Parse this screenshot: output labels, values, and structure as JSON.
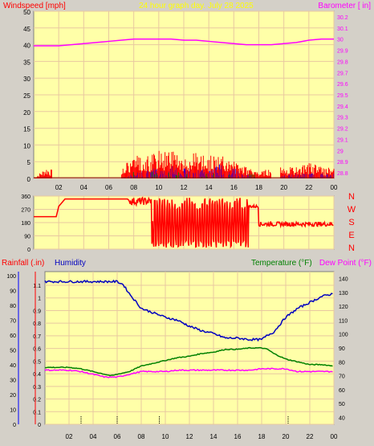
{
  "colors": {
    "frame": "#d4d0c8",
    "plot_bg": "#ffffa8",
    "grid": "#e8c8a0",
    "wind": "#ff0000",
    "gust": "#0000ff",
    "wind_green": "#008000",
    "baro": "#ff00ff",
    "rain": "#ff0000",
    "humidity": "#0000c0",
    "temperature": "#008000",
    "dewpoint": "#ff00ff",
    "title": "#ffff00",
    "axis_text": "#000000"
  },
  "chart_data": [
    {
      "type": "line",
      "id": "wind_baro",
      "title": "24 hour graph day.  July 28 2025",
      "left_label": "Windspeed [mph]",
      "right_label": "Barometer [ in]",
      "x_ticks": [
        "02",
        "04",
        "06",
        "08",
        "10",
        "12",
        "14",
        "16",
        "18",
        "20",
        "22",
        "00"
      ],
      "y_left_ticks": [
        "0",
        "5",
        "10",
        "15",
        "20",
        "25",
        "30",
        "35",
        "40",
        "45",
        "50"
      ],
      "y_left_range": [
        0,
        50
      ],
      "y_right_ticks": [
        "28.8",
        "28.9",
        "29",
        "29.1",
        "29.2",
        "29.3",
        "29.4",
        "29.5",
        "29.6",
        "29.7",
        "29.8",
        "29.9",
        "30",
        "30.1",
        "30.2"
      ],
      "y_right_range": [
        28.75,
        30.25
      ],
      "grid": true,
      "series": [
        {
          "name": "Barometer",
          "axis": "right",
          "x": [
            0,
            1,
            2,
            3,
            4,
            5,
            6,
            7,
            8,
            9,
            10,
            11,
            12,
            13,
            14,
            15,
            16,
            17,
            18,
            19,
            20,
            21,
            22,
            23,
            24
          ],
          "y": [
            29.94,
            29.94,
            29.94,
            29.95,
            29.96,
            29.97,
            29.98,
            29.99,
            30.0,
            30.0,
            30.0,
            30.0,
            29.99,
            29.99,
            29.98,
            29.97,
            29.96,
            29.95,
            29.95,
            29.95,
            29.96,
            29.97,
            29.99,
            30.0,
            30.0
          ]
        },
        {
          "name": "Wind speed",
          "axis": "left",
          "x": [
            0,
            0.5,
            1,
            2,
            3,
            4,
            5,
            6,
            7,
            8,
            9,
            10,
            11,
            12,
            13,
            14,
            15,
            16,
            17,
            18,
            19,
            20,
            21,
            22,
            23,
            24
          ],
          "y": [
            0,
            1,
            2,
            1,
            0,
            0.5,
            0,
            0,
            2,
            4,
            4,
            5,
            5,
            4,
            5,
            4,
            4,
            3,
            2,
            1,
            2,
            2,
            2,
            3,
            2,
            2
          ]
        },
        {
          "name": "Gust",
          "axis": "left",
          "x": [
            7,
            8,
            9,
            10,
            11,
            12,
            13,
            14,
            15,
            16,
            17,
            18,
            19,
            20,
            21,
            22,
            23,
            24
          ],
          "y": [
            0,
            1,
            2,
            2,
            3,
            2,
            2,
            2,
            3,
            2,
            1,
            0,
            0,
            1,
            1,
            1,
            1,
            1
          ]
        }
      ]
    },
    {
      "type": "line",
      "id": "direction",
      "x_ticks": [
        "02",
        "04",
        "06",
        "08",
        "10",
        "12",
        "14",
        "16",
        "18",
        "20",
        "22",
        "00"
      ],
      "y_ticks": [
        "0",
        "90",
        "180",
        "270",
        "360"
      ],
      "y_range": [
        0,
        360
      ],
      "compass_labels": [
        "N",
        "W",
        "S",
        "E",
        "N"
      ],
      "series": [
        {
          "name": "Wind direction",
          "x": [
            0,
            1.8,
            2,
            2.5,
            3,
            4,
            5,
            6,
            7,
            7.5,
            8,
            9,
            10,
            11,
            12,
            13,
            14,
            15,
            16,
            17,
            17.5,
            18,
            19,
            20,
            21,
            22,
            23,
            24
          ],
          "y": [
            220,
            220,
            290,
            340,
            340,
            340,
            340,
            340,
            340,
            340,
            300,
            180,
            200,
            160,
            240,
            180,
            220,
            180,
            260,
            290,
            280,
            170,
            190,
            185,
            185,
            180,
            175,
            175
          ]
        }
      ]
    },
    {
      "type": "line",
      "id": "rain_hum_temp",
      "left_label_1": "Rainfall (.in)",
      "left_label_2": "Humidity",
      "right_label_1": "Temperature (°F)",
      "right_label_2": "Dew Point (°F)",
      "x_ticks": [
        "02",
        "04",
        "06",
        "08",
        "10",
        "12",
        "14",
        "16",
        "18",
        "20",
        "22",
        "00"
      ],
      "y_humidity_ticks": [
        "0",
        "10",
        "20",
        "30",
        "40",
        "50",
        "60",
        "70",
        "80",
        "90",
        "100"
      ],
      "y_humidity_range": [
        0,
        100
      ],
      "y_rain_ticks": [
        "0",
        "0.1",
        "0.2",
        "0.3",
        "0.4",
        "0.5",
        "0.6",
        "0.7",
        "0.8",
        "0.9",
        "1",
        "1.1"
      ],
      "y_rain_range": [
        0,
        1.15
      ],
      "y_temp_ticks": [
        "40",
        "50",
        "60",
        "70",
        "80",
        "90",
        "100",
        "110",
        "120",
        "130",
        "140"
      ],
      "y_temp_range": [
        35,
        145
      ],
      "grid": true,
      "series": [
        {
          "name": "Humidity",
          "axis": "humidity",
          "x": [
            0,
            2,
            4,
            6,
            6.5,
            7,
            8,
            9,
            10,
            11,
            12,
            13,
            14,
            15,
            16,
            17,
            18,
            18.5,
            19,
            20,
            21,
            22,
            23,
            24
          ],
          "y": [
            96,
            96,
            96,
            96,
            94,
            88,
            78,
            75,
            72,
            70,
            66,
            63,
            61,
            58,
            58,
            57,
            57,
            60,
            62,
            72,
            78,
            82,
            86,
            88
          ]
        },
        {
          "name": "Temperature",
          "axis": "temp",
          "x": [
            0,
            1,
            2,
            3,
            4,
            5,
            5.5,
            6,
            7,
            8,
            9,
            10,
            11,
            12,
            13,
            14,
            15,
            16,
            17,
            18,
            18.5,
            19,
            20,
            21,
            22,
            23,
            24
          ],
          "y": [
            76,
            76,
            76,
            75,
            73,
            71,
            70,
            71,
            73,
            77,
            79,
            81,
            83,
            84,
            86,
            87,
            89,
            89,
            90,
            90,
            89,
            86,
            82,
            80,
            78,
            78,
            77
          ]
        },
        {
          "name": "Dew Point",
          "axis": "temp",
          "x": [
            0,
            1,
            2,
            3,
            4,
            5,
            5.5,
            6,
            7,
            8,
            9,
            10,
            11,
            12,
            13,
            14,
            15,
            16,
            17,
            18,
            19,
            20,
            21,
            22,
            23,
            24
          ],
          "y": [
            74,
            74,
            74,
            73,
            71,
            69,
            69,
            69,
            71,
            73,
            73,
            73,
            74,
            74,
            74,
            74,
            74,
            74,
            74,
            75,
            75,
            75,
            73,
            73,
            73,
            73
          ]
        },
        {
          "name": "Rainfall",
          "axis": "rain",
          "x": [
            0,
            24
          ],
          "y": [
            0,
            0
          ]
        }
      ]
    }
  ]
}
